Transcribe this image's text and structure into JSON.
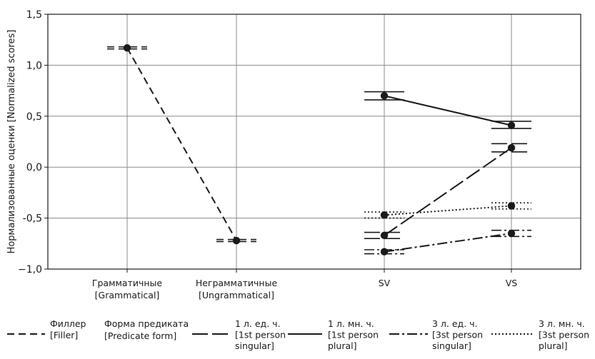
{
  "chart_data": {
    "type": "line",
    "ylabel": "Нормализованные оценки [Normalized scores]",
    "ylim": [
      -1.0,
      1.5
    ],
    "yticks": [
      -1.0,
      -0.5,
      0.0,
      0.5,
      1.0,
      1.5
    ],
    "ytick_labels": [
      "−1,0",
      "-0,5",
      "0,0",
      "0,5",
      "1,0",
      "1,5"
    ],
    "categories": [
      [
        "Грамматичные",
        "[Grammatical]"
      ],
      [
        "Неграмматичные",
        "[Ungrammatical]"
      ],
      [
        "SV"
      ],
      [
        "VS"
      ]
    ],
    "grid": true,
    "legend_position": "bottom",
    "legend_header": [
      "Форма предиката",
      "[Predicate form]"
    ],
    "series": [
      {
        "key": "filler",
        "legend": [
          "Филлер",
          "[Filler]"
        ],
        "dash": "10,6",
        "x": [
          0,
          1
        ],
        "values": [
          1.17,
          -0.72
        ],
        "ci_low": [
          1.16,
          -0.73
        ],
        "ci_high": [
          1.18,
          -0.71
        ]
      },
      {
        "key": "1sg",
        "legend": [
          "1 л. ед. ч.",
          "[1st person",
          "singular]"
        ],
        "dash": "22,6",
        "x": [
          2,
          3
        ],
        "values": [
          -0.67,
          0.19
        ],
        "ci_low": [
          -0.7,
          0.15
        ],
        "ci_high": [
          -0.64,
          0.23
        ]
      },
      {
        "key": "1pl",
        "legend": [
          "1 л. мн. ч.",
          "[1st person",
          "plural]"
        ],
        "dash": "",
        "x": [
          2,
          3
        ],
        "values": [
          0.7,
          0.41
        ],
        "ci_low": [
          0.66,
          0.38
        ],
        "ci_high": [
          0.74,
          0.45
        ]
      },
      {
        "key": "3sg",
        "legend": [
          "3 л. ед. ч.",
          "[3st person",
          "singular]"
        ],
        "dash": "14,4,3,4",
        "x": [
          2,
          3
        ],
        "values": [
          -0.83,
          -0.65
        ],
        "ci_low": [
          -0.85,
          -0.68
        ],
        "ci_high": [
          -0.81,
          -0.62
        ]
      },
      {
        "key": "3pl",
        "legend": [
          "3 л. мн. ч.",
          "[3st person",
          "plural]"
        ],
        "dash": "2,3",
        "x": [
          2,
          3
        ],
        "values": [
          -0.47,
          -0.38
        ],
        "ci_low": [
          -0.5,
          -0.41
        ],
        "ci_high": [
          -0.44,
          -0.35
        ]
      }
    ]
  }
}
